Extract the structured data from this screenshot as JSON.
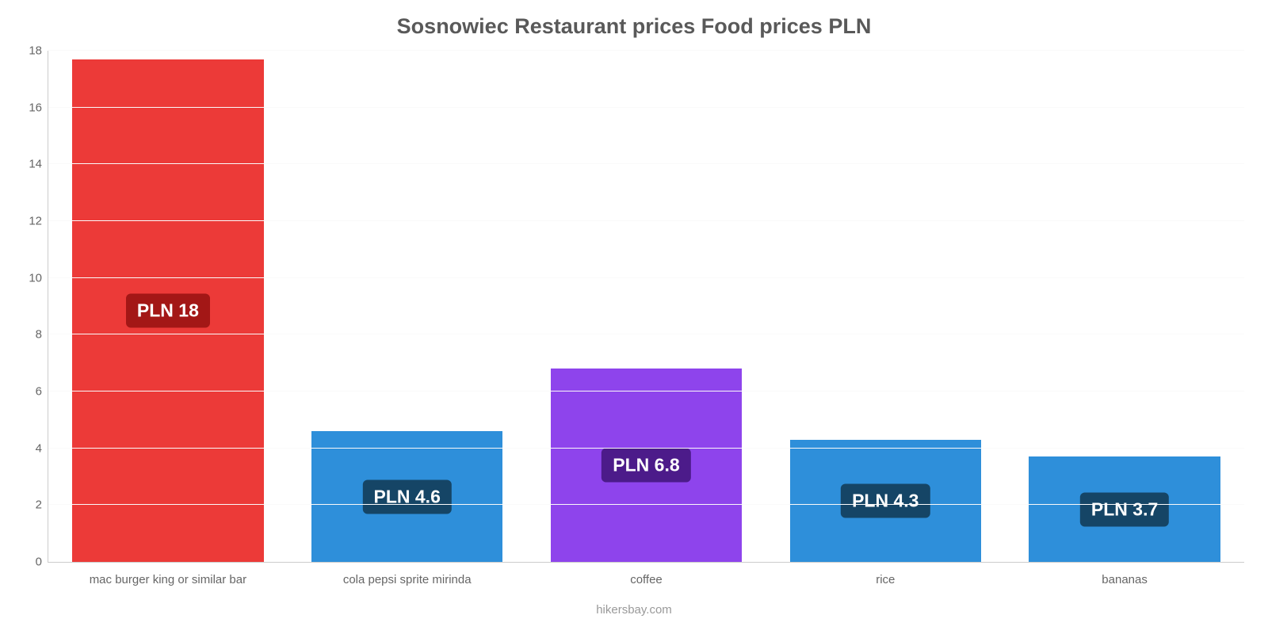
{
  "chart": {
    "type": "bar",
    "title": "Sosnowiec Restaurant prices Food prices PLN",
    "title_color": "#595959",
    "title_fontsize": 27,
    "background_color": "#ffffff",
    "grid_color": "#fafafa",
    "axis_line_color": "#cccccc",
    "tick_label_color": "#666666",
    "tick_fontsize": 15,
    "x_label_fontsize": 15,
    "value_label_fontsize": 23,
    "bar_width_pct": 80,
    "y": {
      "min": 0,
      "max": 18,
      "tick_step": 2,
      "ticks": [
        0,
        2,
        4,
        6,
        8,
        10,
        12,
        14,
        16,
        18
      ]
    },
    "items": [
      {
        "category": "mac burger king or similar bar",
        "value": 17.7,
        "value_label": "PLN 18",
        "bar_color": "#ec3a38",
        "badge_color": "#a31716"
      },
      {
        "category": "cola pepsi sprite mirinda",
        "value": 4.6,
        "value_label": "PLN 4.6",
        "bar_color": "#2e8fda",
        "badge_color": "#154566"
      },
      {
        "category": "coffee",
        "value": 6.8,
        "value_label": "PLN 6.8",
        "bar_color": "#8e44ec",
        "badge_color": "#4c1b8a"
      },
      {
        "category": "rice",
        "value": 4.3,
        "value_label": "PLN 4.3",
        "bar_color": "#2e8fda",
        "badge_color": "#154566"
      },
      {
        "category": "bananas",
        "value": 3.7,
        "value_label": "PLN 3.7",
        "bar_color": "#2e8fda",
        "badge_color": "#154566"
      }
    ],
    "attribution": "hikersbay.com",
    "attribution_color": "#999999",
    "attribution_fontsize": 15
  }
}
